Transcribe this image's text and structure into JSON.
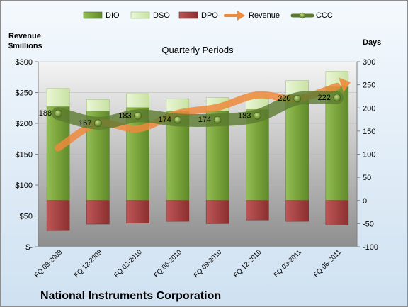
{
  "chart_data": {
    "type": "bar",
    "title": "Quarterly Periods",
    "footer": "National Instruments Corporation",
    "left_axis": {
      "label_line1": "Revenue",
      "label_line2": "$millions",
      "ticks": [
        "$-",
        "$50",
        "$100",
        "$150",
        "$200",
        "$250",
        "$300"
      ],
      "range": [
        0,
        300
      ]
    },
    "right_axis": {
      "label": "Days",
      "ticks": [
        "-100",
        "-50",
        "0",
        "50",
        "100",
        "150",
        "200",
        "250",
        "300"
      ],
      "range": [
        -100,
        300
      ]
    },
    "categories": [
      "FQ 09-2009",
      "FQ 12-2009",
      "FQ 03-2010",
      "FQ 06-2010",
      "FQ 09-2010",
      "FQ 12-2010",
      "FQ 03-2011",
      "FQ 06-2011"
    ],
    "legend": [
      "DIO",
      "DSO",
      "DPO",
      "Revenue",
      "CCC"
    ],
    "series": [
      {
        "name": "DIO",
        "axis": "right",
        "values": [
          203,
          193,
          201,
          193,
          194,
          197,
          228,
          246
        ],
        "color": "#77a03a"
      },
      {
        "name": "DSO",
        "axis": "right",
        "values": [
          39,
          25,
          30,
          27,
          29,
          33,
          31,
          33
        ],
        "color": "#dbeec0"
      },
      {
        "name": "DPO",
        "axis": "right",
        "values": [
          -65,
          -51,
          -49,
          -45,
          -50,
          -42,
          -45,
          -53
        ],
        "color": "#a03c3c"
      },
      {
        "name": "Revenue",
        "axis": "left",
        "values": [
          160,
          200,
          191,
          216,
          226,
          246,
          240,
          260
        ],
        "color": "#ed8a3c"
      },
      {
        "name": "CCC",
        "axis": "right",
        "values": [
          188,
          167,
          183,
          174,
          174,
          183,
          220,
          222
        ],
        "labels": [
          "188",
          "167",
          "183",
          "174",
          "174",
          "183",
          "220",
          "222"
        ],
        "color": "#5b7a2f"
      }
    ],
    "colors": {
      "plot_top": "#f2f2f2",
      "plot_bottom": "#8c8c8c",
      "border": "#8c8c8c"
    }
  }
}
